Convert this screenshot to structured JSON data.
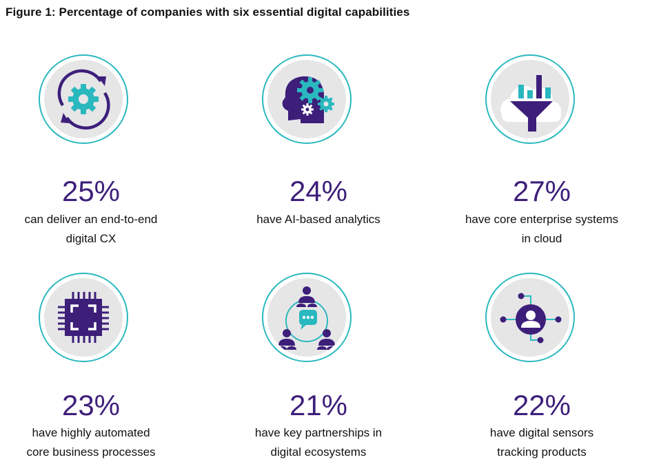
{
  "title": "Figure 1: Percentage of companies with six essential digital capabilities",
  "colors": {
    "accent_purple": "#3d1f7a",
    "accent_teal": "#2ab8bf",
    "circle_bg": "#e6e6e7"
  },
  "chart_data": {
    "type": "bar",
    "title": "Figure 1: Percentage of companies with six essential digital capabilities",
    "categories": [
      "can deliver an end-to-end digital CX",
      "have AI-based analytics",
      "have core enterprise systems in cloud",
      "have highly automated core business processes",
      "have key partnerships in digital ecosystems",
      "have digital sensors tracking products"
    ],
    "values": [
      25,
      24,
      27,
      23,
      21,
      22
    ],
    "unit": "%"
  },
  "items": [
    {
      "pct": "25%",
      "line1": "can deliver an end-to-end",
      "line2": "digital CX",
      "icon": "refresh-gear-icon"
    },
    {
      "pct": "24%",
      "line1": "have AI-based analytics",
      "line2": "",
      "icon": "ai-head-gears-icon"
    },
    {
      "pct": "27%",
      "line1": "have core enterprise systems",
      "line2": "in cloud",
      "icon": "cloud-funnel-icon"
    },
    {
      "pct": "23%",
      "line1": "have highly automated",
      "line2": "core business processes",
      "icon": "chip-icon"
    },
    {
      "pct": "21%",
      "line1": "have key partnerships in",
      "line2": "digital ecosystems",
      "icon": "network-people-icon"
    },
    {
      "pct": "22%",
      "line1": "have digital sensors",
      "line2": "tracking products",
      "icon": "user-sensor-icon"
    }
  ]
}
